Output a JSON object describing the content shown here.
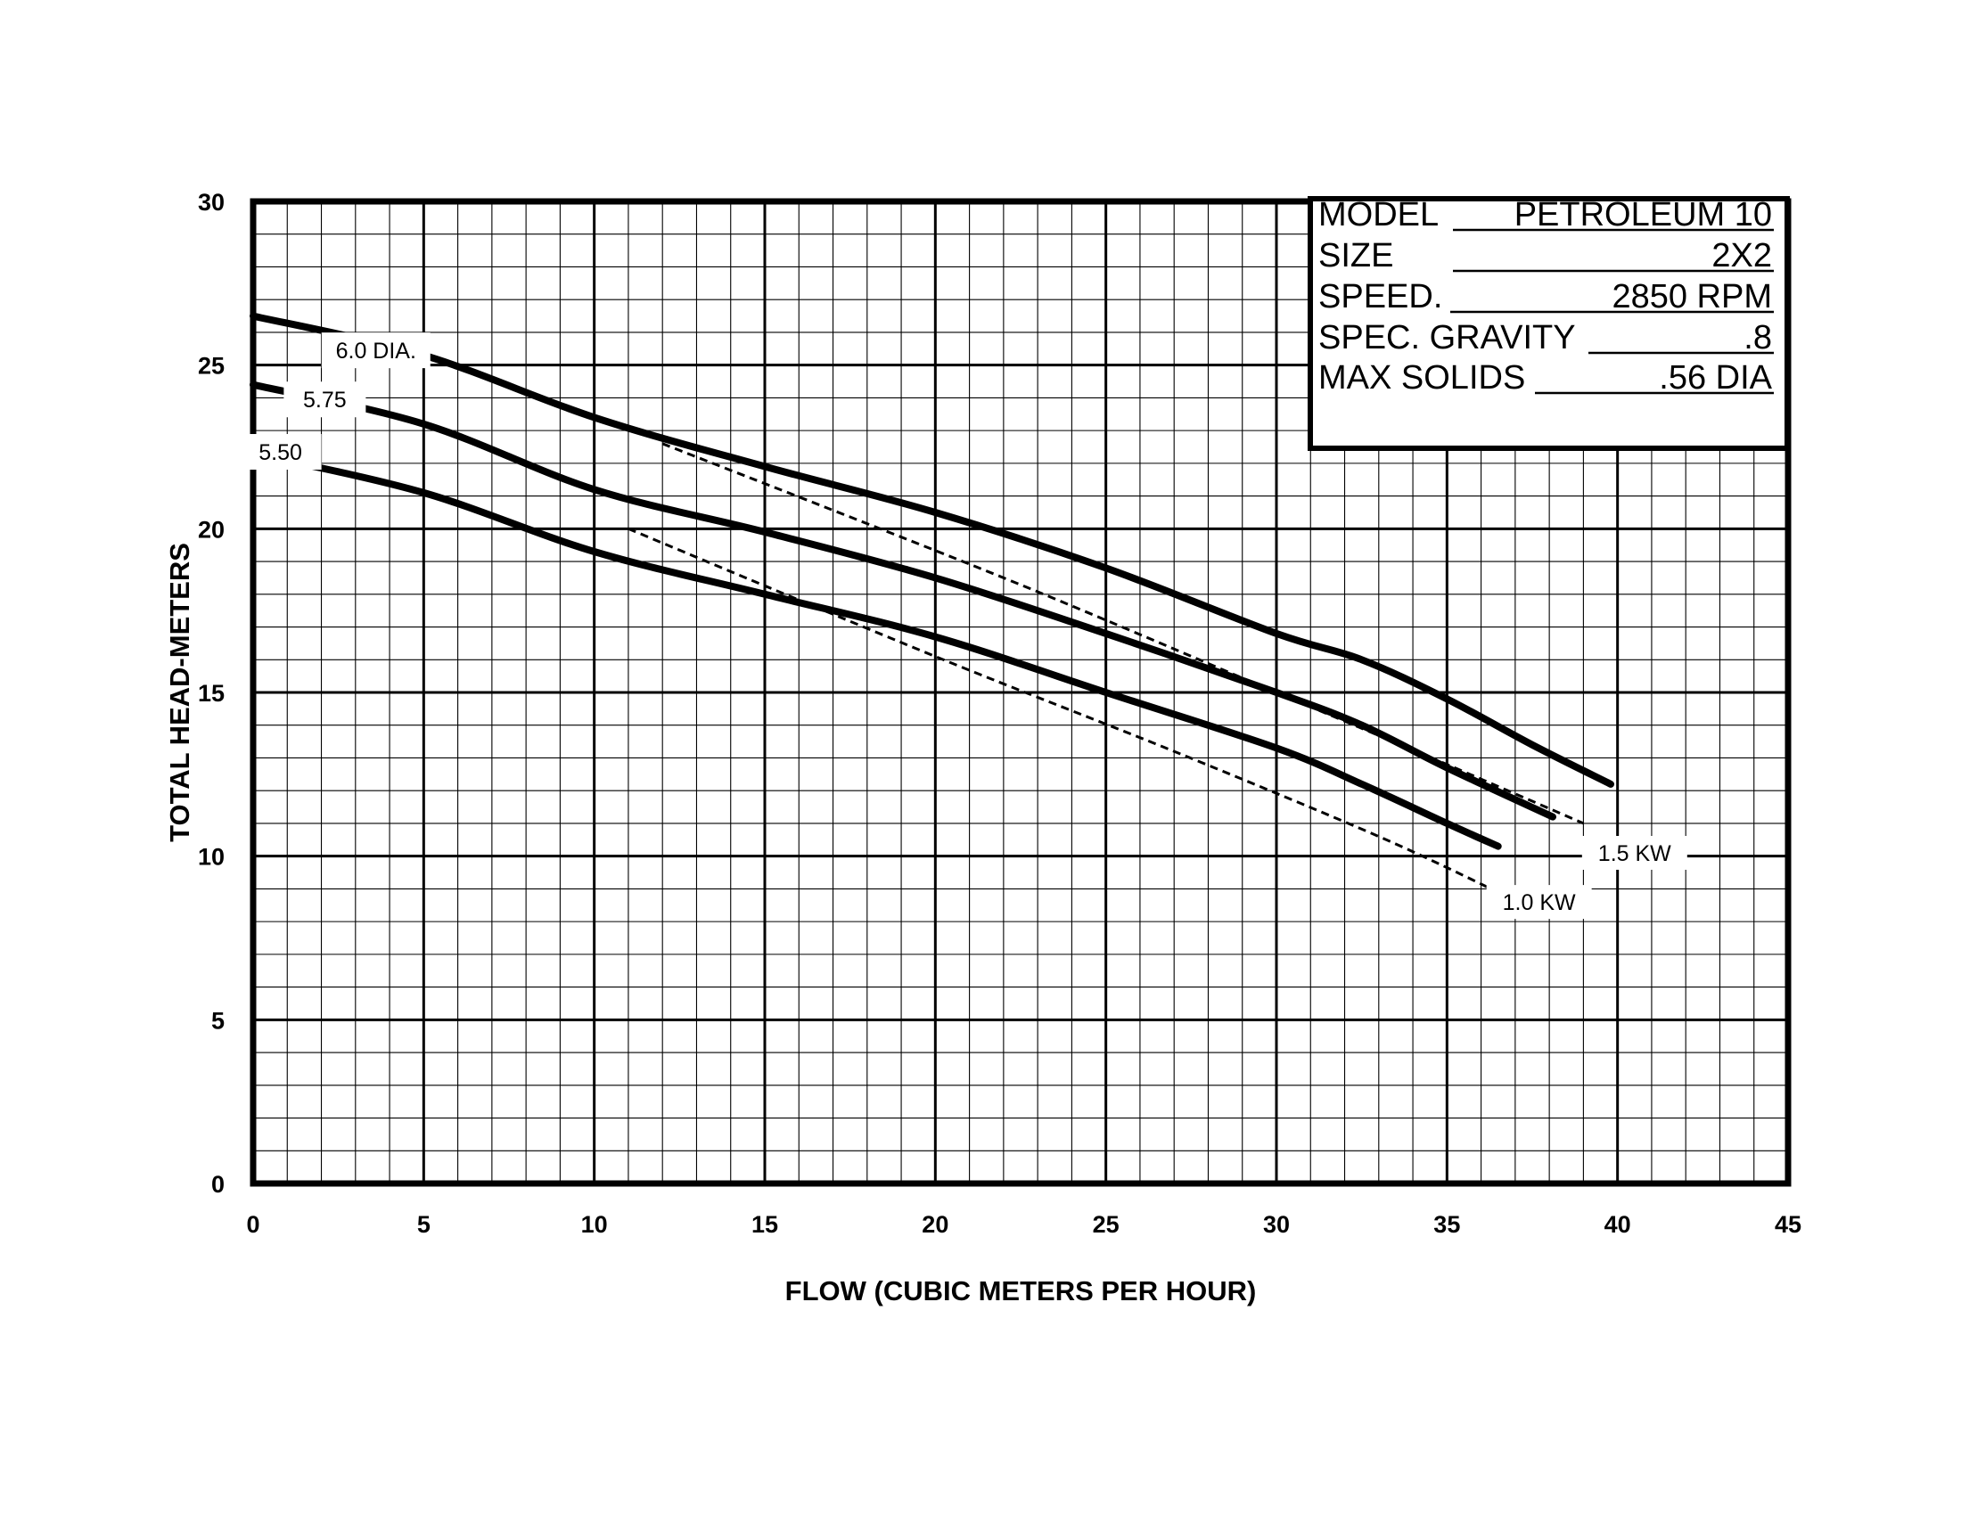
{
  "chart_data": {
    "type": "line",
    "xlabel": "FLOW (CUBIC METERS PER HOUR)",
    "ylabel": "TOTAL HEAD-METERS",
    "xlim": [
      0,
      45
    ],
    "ylim": [
      0,
      30
    ],
    "x_ticks": [
      "0",
      "5",
      "10",
      "15",
      "20",
      "25",
      "30",
      "35",
      "40",
      "45"
    ],
    "y_ticks": [
      "0",
      "5",
      "10",
      "15",
      "20",
      "25",
      "30"
    ],
    "grid": true,
    "series": [
      {
        "name": "6.0 DIA.",
        "style": "solid",
        "points": [
          [
            0,
            26.5
          ],
          [
            5,
            25.3
          ],
          [
            10,
            23.4
          ],
          [
            15,
            21.9
          ],
          [
            20,
            20.5
          ],
          [
            25,
            18.8
          ],
          [
            30,
            16.8
          ],
          [
            32.5,
            16.0
          ],
          [
            35,
            14.8
          ],
          [
            37.5,
            13.4
          ],
          [
            39.8,
            12.2
          ]
        ]
      },
      {
        "name": "5.75",
        "style": "solid",
        "points": [
          [
            0,
            24.4
          ],
          [
            5,
            23.2
          ],
          [
            10,
            21.2
          ],
          [
            15,
            19.9
          ],
          [
            20,
            18.5
          ],
          [
            25,
            16.8
          ],
          [
            30,
            15.0
          ],
          [
            32.5,
            14.0
          ],
          [
            35,
            12.7
          ],
          [
            38.1,
            11.2
          ]
        ]
      },
      {
        "name": "5.50",
        "style": "solid",
        "points": [
          [
            0,
            22.3
          ],
          [
            5,
            21.1
          ],
          [
            10,
            19.3
          ],
          [
            15,
            18.0
          ],
          [
            20,
            16.7
          ],
          [
            25,
            15.0
          ],
          [
            30,
            13.3
          ],
          [
            32.5,
            12.2
          ],
          [
            35,
            11.0
          ],
          [
            36.5,
            10.3
          ]
        ]
      },
      {
        "name": "1.5 KW",
        "style": "dashed",
        "points": [
          [
            12,
            22.6
          ],
          [
            22,
            18.5
          ],
          [
            30,
            15.0
          ],
          [
            35,
            12.8
          ],
          [
            39,
            11.0
          ]
        ]
      },
      {
        "name": "1.0 KW",
        "style": "dashed",
        "points": [
          [
            11,
            20.0
          ],
          [
            20,
            16.1
          ],
          [
            27,
            13.2
          ],
          [
            33,
            10.6
          ],
          [
            36.5,
            8.9
          ]
        ]
      }
    ],
    "info_box": [
      {
        "label": "MODEL",
        "value": "PETROLEUM 10"
      },
      {
        "label": "SIZE",
        "value": "2X2"
      },
      {
        "label": "SPEED.",
        "value": "2850 RPM"
      },
      {
        "label": "SPEC. GRAVITY",
        "value": ".8"
      },
      {
        "label": "MAX SOLIDS",
        "value": ".56 DIA"
      }
    ],
    "colors": {
      "ink": "#000000",
      "background": "#ffffff"
    }
  }
}
